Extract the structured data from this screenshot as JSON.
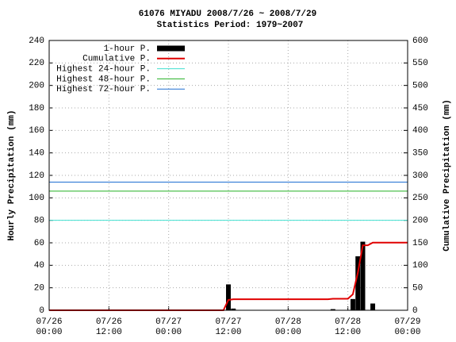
{
  "chart_data": {
    "type": "bar_line",
    "title": "61076 MIYADU  2008/7/26 ~ 2008/7/29",
    "subtitle": "Statistics Period: 1979~2007",
    "ylabel": "Hourly Precipitation (mm)",
    "y2label": "Cumulative Precipitation (mm)",
    "xlim": [
      "07/26 00:00",
      "07/29 00:00"
    ],
    "xticks": [
      {
        "value": "07/26 00:00",
        "label": [
          "07/26",
          "00:00"
        ]
      },
      {
        "value": "07/26 12:00",
        "label": [
          "07/26",
          "12:00"
        ]
      },
      {
        "value": "07/27 00:00",
        "label": [
          "07/27",
          "00:00"
        ]
      },
      {
        "value": "07/27 12:00",
        "label": [
          "07/27",
          "12:00"
        ]
      },
      {
        "value": "07/28 00:00",
        "label": [
          "07/28",
          "00:00"
        ]
      },
      {
        "value": "07/28 12:00",
        "label": [
          "07/28",
          "12:00"
        ]
      },
      {
        "value": "07/29 00:00",
        "label": [
          "07/29",
          "00:00"
        ]
      }
    ],
    "ylim": [
      0,
      240
    ],
    "yticks": [
      0,
      20,
      40,
      60,
      80,
      100,
      120,
      140,
      160,
      180,
      200,
      220,
      240
    ],
    "y2lim": [
      0,
      600
    ],
    "y2ticks": [
      0,
      50,
      100,
      150,
      200,
      250,
      300,
      350,
      400,
      450,
      500,
      550,
      600
    ],
    "grid": true,
    "legend": "upper left",
    "series": [
      {
        "name": "1-hour P.",
        "type": "bar",
        "color": "#000000",
        "x": [
          "07/27 12:00",
          "07/27 13:00",
          "07/28 09:00",
          "07/28 13:00",
          "07/28 14:00",
          "07/28 15:00",
          "07/28 17:00"
        ],
        "values": [
          23,
          1.5,
          1,
          10,
          48,
          61,
          6
        ]
      },
      {
        "name": "Cumulative P.",
        "type": "line",
        "color": "#e00000",
        "axis": "y2",
        "x": [
          "07/26 00:00",
          "07/27 11:00",
          "07/27 12:00",
          "07/27 13:00",
          "07/28 08:00",
          "07/28 09:00",
          "07/28 12:00",
          "07/28 13:00",
          "07/28 14:00",
          "07/28 15:00",
          "07/28 16:00",
          "07/28 17:00",
          "07/29 00:00"
        ],
        "values": [
          0,
          0,
          23,
          24.5,
          24.5,
          25.5,
          25.5,
          35.5,
          83.5,
          144.5,
          144.5,
          150.5,
          150.5
        ]
      }
    ],
    "reference_lines": [
      {
        "name": "Highest 24-hour P.",
        "color": "#40e0d0",
        "value": 200,
        "axis": "y2"
      },
      {
        "name": "Highest 48-hour P.",
        "color": "#22b022",
        "value": 265,
        "axis": "y2"
      },
      {
        "name": "Highest 72-hour P.",
        "color": "#1e6ed2",
        "value": 285,
        "axis": "y2"
      }
    ]
  }
}
